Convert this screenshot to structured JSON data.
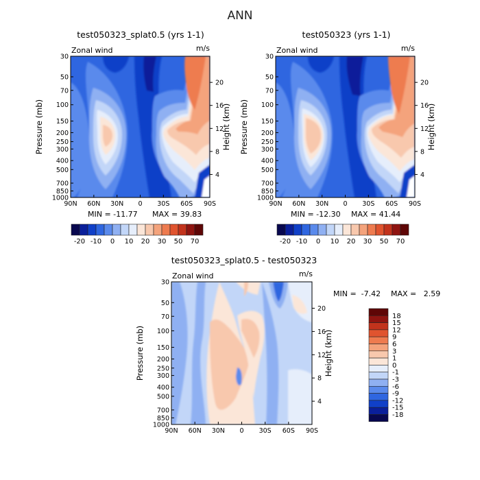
{
  "figure_title": "ANN",
  "colors": {
    "neg_levels": [
      "#08084f",
      "#0a1f9a",
      "#1040c8",
      "#2f66e0",
      "#5a8aec",
      "#8fb0f2",
      "#c2d6f8",
      "#e6eefb"
    ],
    "pos_levels": [
      "#fbe6d8",
      "#f8c8ad",
      "#f4a37c",
      "#ee7b4f",
      "#e0542f",
      "#c2331c",
      "#8f1410",
      "#5e0606"
    ]
  },
  "chart_data": [
    {
      "type": "heatmap",
      "title": "test050323_splat0.5 (yrs 1-1)",
      "variable_label": "Zonal wind",
      "units": "m/s",
      "xlabel": "",
      "ylabel": "Pressure (mb)",
      "ylabel_right": "Height (km)",
      "x_ticks": [
        "90N",
        "60N",
        "30N",
        "0",
        "30S",
        "60S",
        "90S"
      ],
      "x_values": [
        90,
        60,
        30,
        0,
        -30,
        -60,
        -90
      ],
      "y_ticks": [
        "30",
        "50",
        "70",
        "100",
        "150",
        "200",
        "250",
        "300",
        "400",
        "500",
        "700",
        "850",
        "1000"
      ],
      "y_values": [
        30,
        50,
        70,
        100,
        150,
        200,
        250,
        300,
        400,
        500,
        700,
        850,
        1000
      ],
      "y_scale": "log",
      "right_ticks": [
        "20",
        "16",
        "12",
        "8",
        "4"
      ],
      "right_values": [
        20,
        16,
        12,
        8,
        4
      ],
      "min_text": "MIN = -11.77",
      "max_text": "MAX = 39.83",
      "min": -11.77,
      "max": 39.83,
      "colorbar_labels": [
        "-20",
        "-10",
        "0",
        "10",
        "20",
        "30",
        "50",
        "70"
      ],
      "colorbar_orientation": "horizontal"
    },
    {
      "type": "heatmap",
      "title": "test050323 (yrs 1-1)",
      "variable_label": "Zonal wind",
      "units": "m/s",
      "xlabel": "",
      "ylabel": "Pressure (mb)",
      "ylabel_right": "Height (km)",
      "x_ticks": [
        "90N",
        "60N",
        "30N",
        "0",
        "30S",
        "60S",
        "90S"
      ],
      "x_values": [
        90,
        60,
        30,
        0,
        -30,
        -60,
        -90
      ],
      "y_ticks": [
        "30",
        "50",
        "70",
        "100",
        "150",
        "200",
        "250",
        "300",
        "400",
        "500",
        "700",
        "850",
        "1000"
      ],
      "y_values": [
        30,
        50,
        70,
        100,
        150,
        200,
        250,
        300,
        400,
        500,
        700,
        850,
        1000
      ],
      "y_scale": "log",
      "right_ticks": [
        "20",
        "16",
        "12",
        "8",
        "4"
      ],
      "right_values": [
        20,
        16,
        12,
        8,
        4
      ],
      "min_text": "MIN = -12.30",
      "max_text": "MAX = 41.44",
      "min": -12.3,
      "max": 41.44,
      "colorbar_labels": [
        "-20",
        "-10",
        "0",
        "10",
        "20",
        "30",
        "50",
        "70"
      ],
      "colorbar_orientation": "horizontal"
    },
    {
      "type": "heatmap",
      "title": "test050323_splat0.5 - test050323",
      "variable_label": "Zonal wind",
      "units": "m/s",
      "xlabel": "",
      "ylabel": "Pressure (mb)",
      "ylabel_right": "Height (km)",
      "x_ticks": [
        "90N",
        "60N",
        "30N",
        "0",
        "30S",
        "60S",
        "90S"
      ],
      "x_values": [
        90,
        60,
        30,
        0,
        -30,
        -60,
        -90
      ],
      "y_ticks": [
        "30",
        "50",
        "70",
        "100",
        "150",
        "200",
        "250",
        "300",
        "400",
        "500",
        "700",
        "850",
        "1000"
      ],
      "y_values": [
        30,
        50,
        70,
        100,
        150,
        200,
        250,
        300,
        400,
        500,
        700,
        850,
        1000
      ],
      "y_scale": "log",
      "right_ticks": [
        "20",
        "16",
        "12",
        "8",
        "4"
      ],
      "right_values": [
        20,
        16,
        12,
        8,
        4
      ],
      "min_text": "MIN =  -7.42",
      "max_text": "MAX =   2.59",
      "min": -7.42,
      "max": 2.59,
      "colorbar_labels": [
        "18",
        "15",
        "12",
        "9",
        "6",
        "3",
        "1",
        "0",
        "-1",
        "-3",
        "-6",
        "-9",
        "-12",
        "-15",
        "-18"
      ],
      "colorbar_orientation": "vertical"
    }
  ]
}
